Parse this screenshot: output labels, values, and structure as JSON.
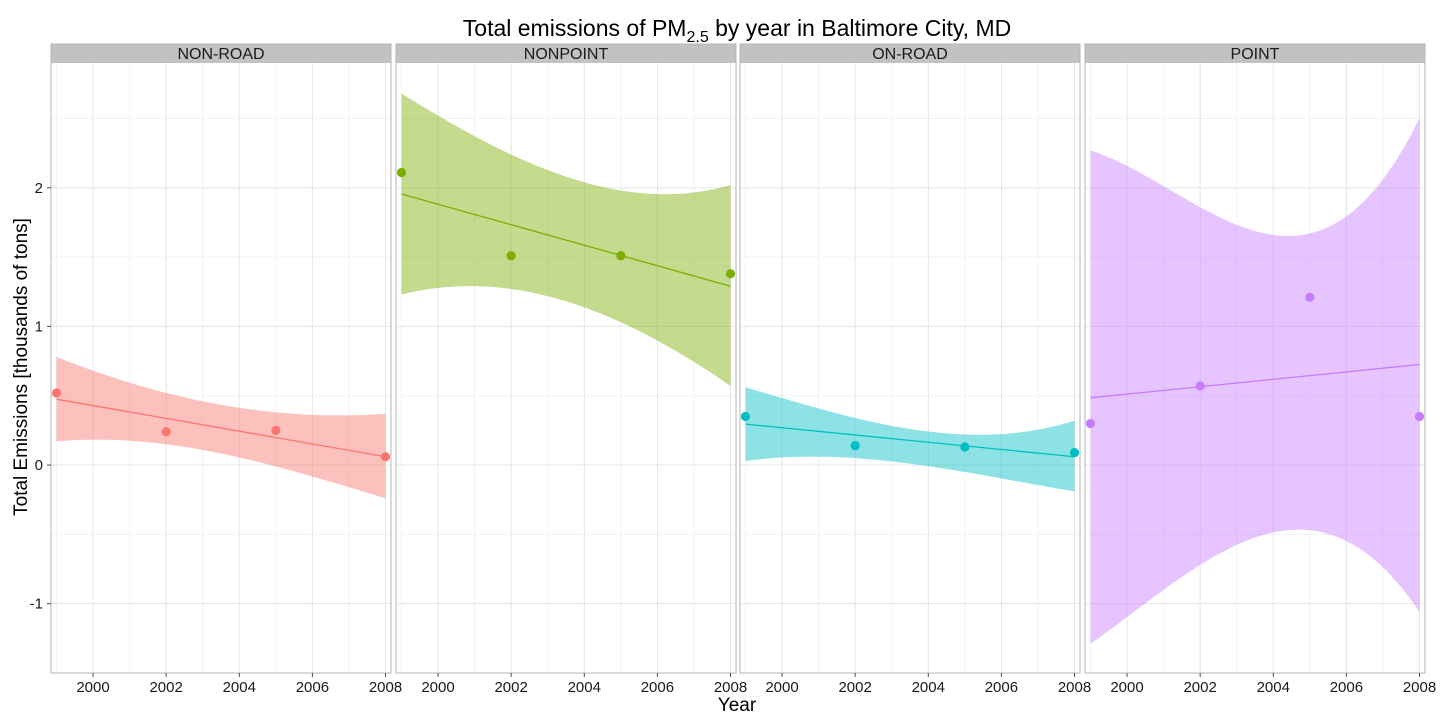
{
  "chart_data": {
    "type": "scatter",
    "title": "Total emissions of PM",
    "title_subscript": "2.5",
    "title_suffix": " by year in Baltimore City, MD",
    "xlabel": "Year",
    "ylabel": "Total Emissions [thousands of tons]",
    "xlim": [
      1998.85,
      2008.15
    ],
    "ylim": [
      -1.5,
      2.9
    ],
    "x_ticks": [
      2000,
      2002,
      2004,
      2006,
      2008
    ],
    "y_ticks": [
      -1,
      0,
      1,
      2
    ],
    "grid": true,
    "x": [
      1999,
      2002,
      2005,
      2008
    ],
    "series": [
      {
        "name": "NON-ROAD",
        "color": "#F8766D",
        "values": [
          0.52,
          0.24,
          0.25,
          0.06
        ],
        "fit": [
          0.475,
          0.06
        ],
        "band_lower": [
          0.17,
          0.15,
          -0.01,
          -0.24
        ],
        "band_upper": [
          0.78,
          0.52,
          0.38,
          0.37
        ]
      },
      {
        "name": "NONPOINT",
        "color": "#7CAE00",
        "values": [
          2.11,
          1.51,
          1.51,
          1.38
        ],
        "fit": [
          1.955,
          1.29
        ],
        "band_lower": [
          1.23,
          1.27,
          1.03,
          0.57
        ],
        "band_upper": [
          2.68,
          2.24,
          1.98,
          2.02
        ]
      },
      {
        "name": "ON-ROAD",
        "color": "#00BFC4",
        "values": [
          0.35,
          0.14,
          0.13,
          0.09
        ],
        "fit": [
          0.295,
          0.06
        ],
        "band_lower": [
          0.03,
          0.05,
          -0.05,
          -0.19
        ],
        "band_upper": [
          0.56,
          0.34,
          0.22,
          0.32
        ]
      },
      {
        "name": "POINT",
        "color": "#C77CFF",
        "values": [
          0.3,
          0.57,
          1.21,
          0.35
        ],
        "fit": [
          0.485,
          0.725
        ],
        "band_lower": [
          -1.29,
          -0.72,
          -0.47,
          -1.06
        ],
        "band_upper": [
          2.27,
          1.86,
          1.67,
          2.5
        ]
      }
    ]
  }
}
